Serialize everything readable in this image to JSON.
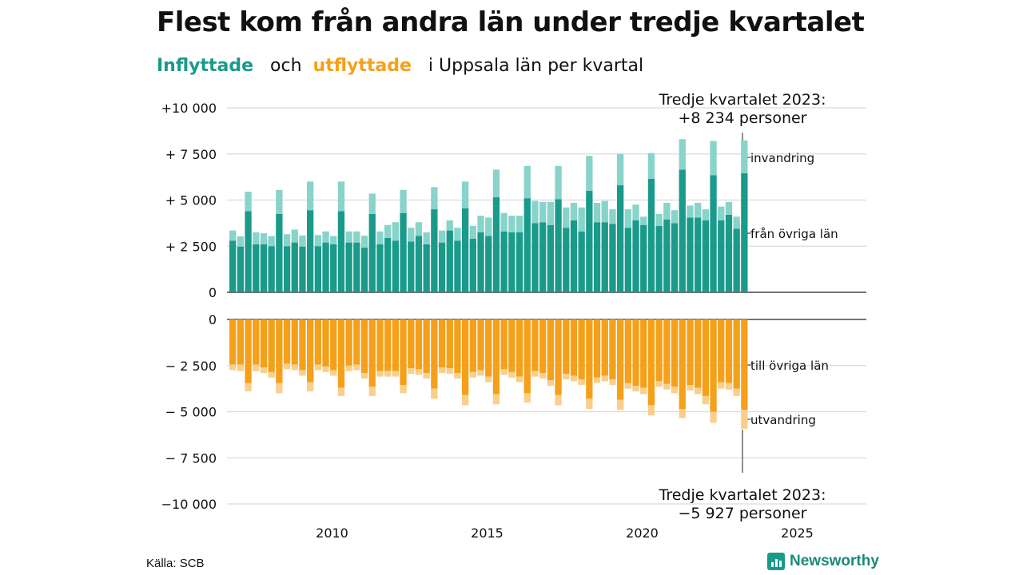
{
  "title": "Flest kom från andra län under tredje kvartalet",
  "subtitle": {
    "in": "Inflyttade",
    "and": "och",
    "out": "utflyttade",
    "rest": "i Uppsala  län  per  kvartal"
  },
  "source": "Källa: SCB",
  "logo": {
    "icon": "newsworthy-logo-icon",
    "text": "Newsworthy"
  },
  "colors": {
    "in_dark": "#1a9a8a",
    "in_light": "#88d3ca",
    "out_dark": "#f5a01a",
    "out_light": "#f8cf8c"
  },
  "chart_data": {
    "type": "bar",
    "stacked": true,
    "x_start": {
      "year": 2007,
      "quarter": 1
    },
    "x_ticks": [
      "2010",
      "2015",
      "2020",
      "2025"
    ],
    "y_top_ticks": [
      "+10 000",
      "+ 7 500",
      "+ 5 000",
      "+ 2 500",
      "0"
    ],
    "y_bottom_ticks": [
      "0",
      "− 2 500",
      "− 5 000",
      "− 7 500",
      "−10 000"
    ],
    "ylim_in": [
      0,
      10000
    ],
    "ylim_out": [
      -10000,
      0
    ],
    "grid": true,
    "labels": {
      "invandring": "invandring",
      "fran_ovriga_lan": "från övriga län",
      "till_ovriga_lan": "till övriga län",
      "utvandring": "utvandring"
    },
    "annotation_top": {
      "line1": "Tredje kvartalet 2023:",
      "line2": "+8 234 personer"
    },
    "annotation_bottom": {
      "line1": "Tredje kvartalet 2023:",
      "line2": "−5 927 personer"
    },
    "series": [
      {
        "name": "från övriga län",
        "values": [
          2800,
          2480,
          4400,
          2600,
          2600,
          2500,
          4250,
          2500,
          2700,
          2480,
          4450,
          2500,
          2700,
          2600,
          4400,
          2700,
          2700,
          2420,
          4250,
          2600,
          2950,
          2800,
          4300,
          2750,
          3050,
          2600,
          4500,
          2700,
          3350,
          2800,
          4550,
          2900,
          3250,
          3050,
          5150,
          3300,
          3250,
          3250,
          5100,
          3750,
          3800,
          3650,
          5050,
          3500,
          3900,
          3300,
          5500,
          3800,
          3800,
          3700,
          5800,
          3500,
          3900,
          3650,
          6150,
          3600,
          3950,
          3750,
          6650,
          4050,
          4050,
          3900,
          6350,
          3900,
          4200,
          3450,
          6450
        ]
      },
      {
        "name": "invandring",
        "values": [
          550,
          550,
          1050,
          650,
          600,
          550,
          1300,
          650,
          700,
          600,
          1550,
          600,
          600,
          450,
          1600,
          600,
          600,
          650,
          1100,
          700,
          700,
          1000,
          1250,
          750,
          750,
          650,
          1200,
          650,
          550,
          700,
          1450,
          700,
          900,
          1000,
          1500,
          1000,
          900,
          900,
          1750,
          1200,
          1100,
          1250,
          1800,
          1100,
          950,
          1300,
          1900,
          1050,
          1150,
          800,
          1700,
          1000,
          850,
          450,
          1400,
          650,
          900,
          700,
          1650,
          650,
          800,
          600,
          1850,
          750,
          700,
          650,
          1784
        ]
      },
      {
        "name": "till övriga län",
        "values": [
          2450,
          2450,
          3450,
          2450,
          2600,
          2850,
          3450,
          2400,
          2450,
          2750,
          3400,
          2450,
          2550,
          2750,
          3700,
          2500,
          2450,
          2900,
          3650,
          2800,
          2800,
          2800,
          3550,
          2650,
          2700,
          2900,
          3750,
          2600,
          2650,
          2900,
          4100,
          2850,
          2750,
          3100,
          4050,
          2700,
          2850,
          3100,
          4000,
          2800,
          2900,
          3300,
          4100,
          2950,
          3050,
          3250,
          4300,
          3150,
          3050,
          3250,
          4350,
          3450,
          3600,
          3700,
          4650,
          3350,
          3500,
          3650,
          4850,
          3550,
          3700,
          4150,
          5000,
          3400,
          3450,
          3750,
          4900
        ]
      },
      {
        "name": "utvandring",
        "values": [
          300,
          350,
          450,
          350,
          300,
          300,
          550,
          300,
          300,
          300,
          500,
          300,
          300,
          300,
          450,
          300,
          300,
          300,
          500,
          300,
          300,
          300,
          450,
          300,
          300,
          300,
          550,
          300,
          300,
          300,
          550,
          300,
          300,
          300,
          550,
          300,
          300,
          300,
          500,
          300,
          300,
          300,
          550,
          300,
          300,
          300,
          550,
          300,
          300,
          300,
          550,
          300,
          300,
          350,
          550,
          300,
          300,
          350,
          500,
          300,
          350,
          450,
          600,
          350,
          350,
          400,
          1027
        ]
      }
    ]
  }
}
